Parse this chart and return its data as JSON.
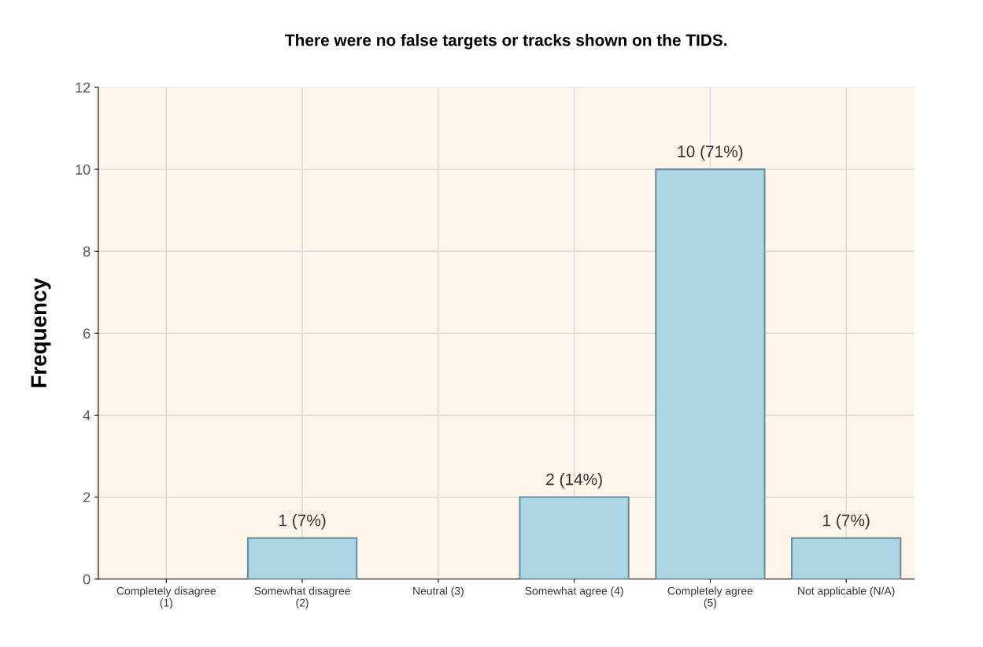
{
  "chart_data": {
    "type": "bar",
    "title": "There were no false targets or tracks shown on the TIDS.",
    "ylabel": "Frequency",
    "categories": [
      "Completely disagree\n(1)",
      "Somewhat disagree\n(2)",
      "Neutral (3)",
      "Somewhat agree (4)",
      "Completely agree\n(5)",
      "Not applicable (N/A)"
    ],
    "values": [
      0,
      1,
      0,
      2,
      10,
      1
    ],
    "value_labels": [
      null,
      "1 (7%)",
      null,
      "2 (14%)",
      "10 (71%)",
      "1 (7%)"
    ],
    "color": "#acd6e4",
    "ylim": [
      0,
      12
    ],
    "yticks": [
      0,
      2,
      4,
      6,
      8,
      10,
      12
    ],
    "grid": true
  }
}
